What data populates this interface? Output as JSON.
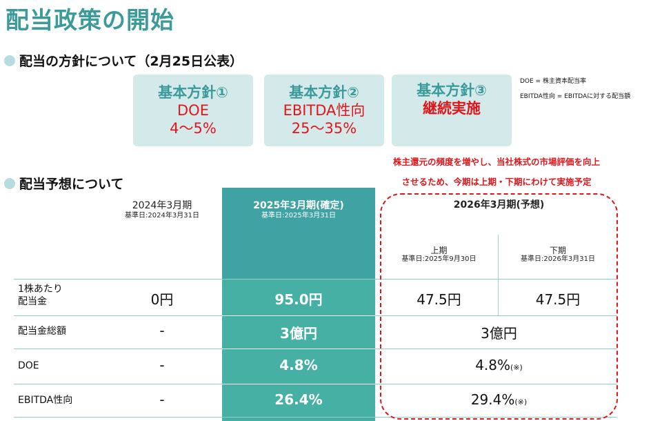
{
  "title": "配当政策の開始",
  "policy_section": {
    "heading": "配当の方針について（2月25日公表）",
    "boxes": [
      {
        "head": "基本方針①",
        "line1": "DOE",
        "line2": "4〜5%"
      },
      {
        "head": "基本方針②",
        "line1": "EBITDA性向",
        "line2": "25〜35%"
      },
      {
        "head": "基本方針③",
        "line1": "継続実施",
        "line2": ""
      }
    ],
    "notes": [
      "DOE = 株主資本配当率",
      "EBITDA性向 = EBITDAに対する配当額"
    ]
  },
  "forecast_section": {
    "heading": "配当予想について",
    "announcement": [
      "株主還元の頻度を増やし、当社株式の市場評価を向上",
      "させるため、今期は上期・下期にわけて実施予定"
    ],
    "columns": {
      "fy2024": {
        "label": "2024年3月期",
        "base_date": "基準日:2024年3月31日"
      },
      "fy2025": {
        "label": "2025年3月期(確定)",
        "base_date": "基準日:2025年3月31日"
      },
      "fy2026": {
        "label": "2026年3月期(予想)"
      },
      "fy2026_h1": {
        "label": "上期",
        "base_date": "基準日:2025年9月30日"
      },
      "fy2026_h2": {
        "label": "下期",
        "base_date": "基準日:2026年3月31日"
      }
    },
    "rows": [
      {
        "label_line1": "1株あたり",
        "label_line2": "配当金",
        "fy2024": "0円",
        "fy2025": "95.0円",
        "fy2026_h1": "47.5円",
        "fy2026_h2": "47.5円"
      },
      {
        "label": "配当金総額",
        "fy2024": "-",
        "fy2025": "3億円",
        "fy2026": "3億円"
      },
      {
        "label": "DOE",
        "fy2024": "-",
        "fy2025": "4.8%",
        "fy2026": "4.8%",
        "fy2026_note": "(※)"
      },
      {
        "label": "EBITDA性向",
        "fy2024": "-",
        "fy2025": "26.4%",
        "fy2026": "29.4%",
        "fy2026_note": "(※)"
      }
    ]
  },
  "colors": {
    "title_teal": "#3b9a9a",
    "column_teal": "#3fa3a3",
    "box_bg": "#d4e9ea",
    "accent_red": "#e0161b"
  }
}
